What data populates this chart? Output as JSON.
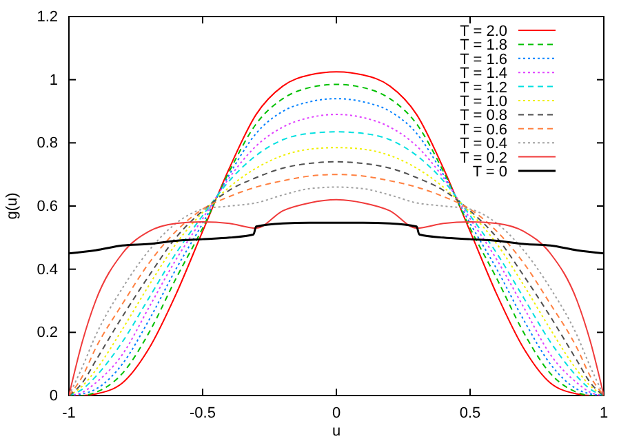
{
  "chart_data": {
    "type": "line",
    "xlabel": "u",
    "ylabel": "g(u)",
    "x": [
      -1,
      -0.95,
      -0.9,
      -0.8,
      -0.7,
      -0.6,
      -0.5,
      -0.4,
      -0.3,
      -0.2,
      -0.1,
      0,
      0.1,
      0.2,
      0.3,
      0.4,
      0.5,
      0.6,
      0.7,
      0.8,
      0.9,
      0.95,
      1
    ],
    "xlim": [
      -1,
      1
    ],
    "xticks": [
      -1,
      -0.5,
      0,
      0.5,
      1
    ],
    "ylim": [
      0,
      1.2
    ],
    "yticks": [
      0,
      0.2,
      0.4,
      0.6,
      0.8,
      1,
      1.2
    ],
    "grid": false,
    "legend": "top right",
    "marker": "none",
    "series": [
      {
        "name": "T = 2.0",
        "color": "#ff0000",
        "line_style": "solid",
        "values": [
          0,
          0,
          0.005,
          0.04,
          0.15,
          0.32,
          0.52,
          0.72,
          0.89,
          0.98,
          1.015,
          1.025,
          1.015,
          0.98,
          0.89,
          0.72,
          0.52,
          0.32,
          0.15,
          0.04,
          0.005,
          0,
          0
        ]
      },
      {
        "name": "T = 1.8",
        "color": "#00c000",
        "line_style": "dashed",
        "values": [
          0,
          0,
          0.01,
          0.07,
          0.2,
          0.37,
          0.53,
          0.71,
          0.86,
          0.94,
          0.975,
          0.985,
          0.975,
          0.94,
          0.86,
          0.71,
          0.53,
          0.37,
          0.2,
          0.07,
          0.01,
          0,
          0
        ]
      },
      {
        "name": "T = 1.6",
        "color": "#0080ff",
        "line_style": "dotted",
        "values": [
          0,
          0.005,
          0.02,
          0.1,
          0.24,
          0.4,
          0.545,
          0.7,
          0.83,
          0.9,
          0.93,
          0.94,
          0.93,
          0.9,
          0.83,
          0.7,
          0.545,
          0.4,
          0.24,
          0.1,
          0.02,
          0.005,
          0
        ]
      },
      {
        "name": "T = 1.4",
        "color": "#e040ff",
        "line_style": "dotted",
        "values": [
          0,
          0.01,
          0.04,
          0.13,
          0.28,
          0.43,
          0.56,
          0.69,
          0.79,
          0.85,
          0.88,
          0.89,
          0.88,
          0.85,
          0.79,
          0.69,
          0.56,
          0.43,
          0.28,
          0.13,
          0.04,
          0.01,
          0
        ]
      },
      {
        "name": "T = 1.2",
        "color": "#00e0e0",
        "line_style": "dashed",
        "values": [
          0,
          0.02,
          0.06,
          0.17,
          0.31,
          0.45,
          0.57,
          0.68,
          0.76,
          0.81,
          0.83,
          0.835,
          0.83,
          0.81,
          0.76,
          0.68,
          0.57,
          0.45,
          0.31,
          0.17,
          0.06,
          0.02,
          0
        ]
      },
      {
        "name": "T = 1.0",
        "color": "#f0f000",
        "line_style": "dotted",
        "values": [
          0,
          0.03,
          0.08,
          0.21,
          0.35,
          0.48,
          0.58,
          0.66,
          0.72,
          0.76,
          0.78,
          0.785,
          0.78,
          0.76,
          0.72,
          0.66,
          0.58,
          0.48,
          0.35,
          0.21,
          0.08,
          0.03,
          0
        ]
      },
      {
        "name": "T = 0.8",
        "color": "#505050",
        "line_style": "dashed",
        "values": [
          0,
          0.04,
          0.11,
          0.25,
          0.38,
          0.5,
          0.585,
          0.65,
          0.69,
          0.72,
          0.735,
          0.74,
          0.735,
          0.72,
          0.69,
          0.65,
          0.585,
          0.5,
          0.38,
          0.25,
          0.11,
          0.04,
          0
        ]
      },
      {
        "name": "T = 0.6",
        "color": "#ff8040",
        "line_style": "dashed",
        "values": [
          0,
          0.06,
          0.15,
          0.29,
          0.42,
          0.52,
          0.59,
          0.63,
          0.66,
          0.68,
          0.695,
          0.7,
          0.695,
          0.68,
          0.66,
          0.63,
          0.59,
          0.52,
          0.42,
          0.29,
          0.15,
          0.06,
          0
        ]
      },
      {
        "name": "T = 0.4",
        "color": "#a0a0a0",
        "line_style": "dotted",
        "values": [
          0,
          0.09,
          0.19,
          0.34,
          0.46,
          0.545,
          0.59,
          0.6,
          0.61,
          0.635,
          0.655,
          0.66,
          0.655,
          0.635,
          0.61,
          0.6,
          0.59,
          0.545,
          0.46,
          0.34,
          0.19,
          0.09,
          0
        ]
      },
      {
        "name": "T = 0.2",
        "color": "#f03a3a",
        "line_style": "solid",
        "values": [
          0,
          0.17,
          0.3,
          0.45,
          0.52,
          0.545,
          0.55,
          0.545,
          0.53,
          0.585,
          0.61,
          0.62,
          0.61,
          0.585,
          0.53,
          0.545,
          0.55,
          0.545,
          0.52,
          0.45,
          0.3,
          0.17,
          0
        ]
      },
      {
        "name": "T = 0",
        "color": "#000000",
        "line_style": "solid",
        "x": [
          -1,
          -0.9,
          -0.8,
          -0.7,
          -0.6,
          -0.5,
          -0.4,
          -0.31,
          -0.3,
          -0.2,
          -0.1,
          0,
          0.1,
          0.2,
          0.3,
          0.31,
          0.4,
          0.5,
          0.6,
          0.7,
          0.8,
          0.9,
          1
        ],
        "values": [
          0.45,
          0.46,
          0.475,
          0.48,
          0.49,
          0.495,
          0.5,
          0.51,
          0.535,
          0.545,
          0.547,
          0.547,
          0.547,
          0.545,
          0.535,
          0.51,
          0.5,
          0.495,
          0.49,
          0.48,
          0.475,
          0.46,
          0.45
        ]
      }
    ]
  }
}
